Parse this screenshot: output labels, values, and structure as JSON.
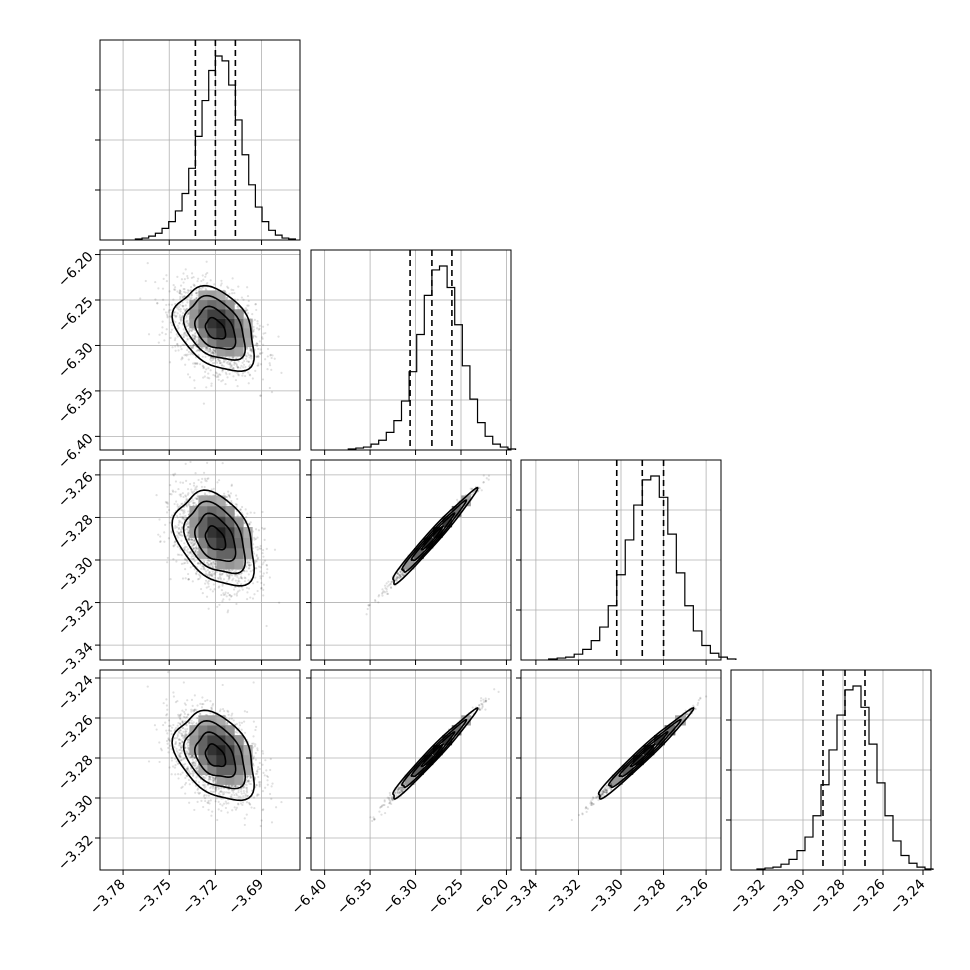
{
  "chart_data": {
    "type": "corner",
    "parameters": [
      {
        "index": 0,
        "range": [
          -3.795,
          -3.665
        ],
        "ticks": [
          -3.78,
          -3.75,
          -3.72,
          -3.69
        ],
        "tick_labels": [
          "−3.78",
          "−3.75",
          "−3.72",
          "−3.69"
        ],
        "median": -3.72,
        "quantile_low": -3.733,
        "quantile_high": -3.707,
        "sigma": 0.013,
        "hist_counts": [
          1,
          2,
          4,
          7,
          12,
          19,
          30,
          48,
          74,
          107,
          144,
          175,
          190,
          185,
          160,
          124,
          88,
          57,
          34,
          19,
          10,
          5,
          2,
          1
        ]
      },
      {
        "index": 1,
        "range": [
          -6.415,
          -6.195
        ],
        "ticks": [
          -6.4,
          -6.35,
          -6.3,
          -6.25,
          -6.2
        ],
        "tick_labels": [
          "−6.40",
          "−6.35",
          "−6.30",
          "−6.25",
          "−6.20"
        ],
        "median": -6.282,
        "quantile_low": -6.306,
        "quantile_high": -6.26,
        "sigma": 0.023,
        "hist_counts": [
          1,
          2,
          3,
          6,
          10,
          18,
          30,
          50,
          80,
          118,
          158,
          184,
          188,
          166,
          128,
          86,
          52,
          28,
          14,
          6,
          3,
          1
        ]
      },
      {
        "index": 2,
        "range": [
          -3.347,
          -3.253
        ],
        "ticks": [
          -3.34,
          -3.32,
          -3.3,
          -3.28,
          -3.26
        ],
        "tick_labels": [
          "−3.34",
          "−3.32",
          "−3.30",
          "−3.28",
          "−3.26"
        ],
        "median": -3.29,
        "quantile_low": -3.302,
        "quantile_high": -3.28,
        "sigma": 0.011,
        "hist_counts": [
          1,
          2,
          3,
          6,
          11,
          20,
          34,
          56,
          88,
          124,
          160,
          186,
          190,
          168,
          130,
          90,
          56,
          30,
          15,
          7,
          3,
          1
        ]
      },
      {
        "index": 3,
        "range": [
          -3.336,
          -3.236
        ],
        "ticks": [
          -3.32,
          -3.3,
          -3.28,
          -3.26,
          -3.24
        ],
        "tick_labels": [
          "−3.32",
          "−3.30",
          "−3.28",
          "−3.26",
          "−3.24"
        ],
        "median": -3.279,
        "quantile_low": -3.29,
        "quantile_high": -3.269,
        "sigma": 0.011,
        "hist_counts": [
          1,
          2,
          3,
          6,
          11,
          20,
          34,
          56,
          88,
          124,
          160,
          186,
          190,
          168,
          130,
          90,
          56,
          30,
          15,
          7,
          3,
          1
        ]
      }
    ],
    "correlations": [
      {
        "x": 0,
        "y": 1,
        "rho": -0.35
      },
      {
        "x": 0,
        "y": 2,
        "rho": -0.35
      },
      {
        "x": 0,
        "y": 3,
        "rho": -0.35
      },
      {
        "x": 1,
        "y": 2,
        "rho": 0.99
      },
      {
        "x": 1,
        "y": 3,
        "rho": 0.99
      },
      {
        "x": 2,
        "y": 3,
        "rho": 0.995
      }
    ],
    "contour_levels_sigma": [
      0.5,
      1.0,
      1.5,
      2.0
    ],
    "quantiles": [
      0.16,
      0.5,
      0.84
    ],
    "grid": true,
    "color": "#000000",
    "title": "",
    "xlabel": "",
    "ylabel": ""
  }
}
